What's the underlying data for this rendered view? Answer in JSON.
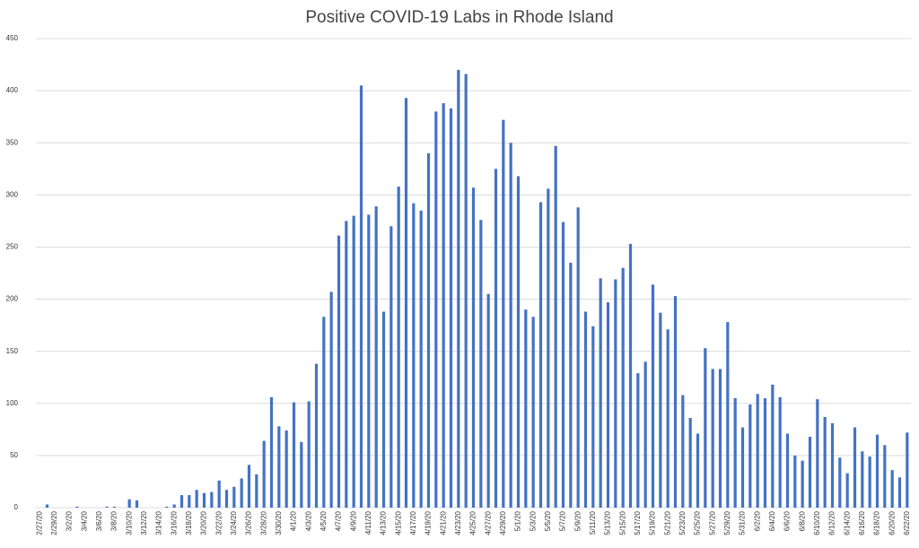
{
  "chart_data": {
    "type": "bar",
    "title": "Positive COVID-19 Labs in Rhode Island",
    "categories": [
      "2/27/20",
      null,
      "2/29/20",
      null,
      "3/2/20",
      null,
      "3/4/20",
      null,
      "3/6/20",
      null,
      "3/8/20",
      null,
      "3/10/20",
      null,
      "3/12/20",
      null,
      "3/14/20",
      null,
      "3/16/20",
      null,
      "3/18/20",
      null,
      "3/20/20",
      null,
      "3/22/20",
      null,
      "3/24/20",
      null,
      "3/26/20",
      null,
      "3/28/20",
      null,
      "3/30/20",
      null,
      "4/1/20",
      null,
      "4/3/20",
      null,
      "4/5/20",
      null,
      "4/7/20",
      null,
      "4/9/20",
      null,
      "4/11/20",
      null,
      "4/13/20",
      null,
      "4/15/20",
      null,
      "4/17/20",
      null,
      "4/19/20",
      null,
      "4/21/20",
      null,
      "4/23/20",
      null,
      "4/25/20",
      null,
      "4/27/20",
      null,
      "4/29/20",
      null,
      "5/1/20",
      null,
      "5/3/20",
      null,
      "5/5/20",
      null,
      "5/7/20",
      null,
      "5/9/20",
      null,
      "5/11/20",
      null,
      "5/13/20",
      null,
      "5/15/20",
      null,
      "5/17/20",
      null,
      "5/19/20",
      null,
      "5/21/20",
      null,
      "5/23/20",
      null,
      "5/25/20",
      null,
      "5/27/20",
      null,
      "5/29/20",
      null,
      "5/31/20",
      null,
      "6/2/20",
      null,
      "6/4/20",
      null,
      "6/6/20",
      null,
      "6/8/20",
      null,
      "6/10/20",
      null,
      "6/12/20",
      null,
      "6/14/20",
      null,
      "6/16/20",
      null,
      "6/18/20",
      null,
      "6/20/20",
      null,
      "6/22/20"
    ],
    "values": [
      0,
      3,
      0,
      0,
      0,
      1,
      0,
      0,
      0,
      1,
      1,
      0,
      8,
      7,
      0,
      0,
      0,
      1,
      3,
      12,
      12,
      17,
      14,
      15,
      26,
      17,
      20,
      28,
      41,
      32,
      64,
      106,
      78,
      74,
      101,
      63,
      102,
      138,
      183,
      207,
      261,
      275,
      280,
      405,
      281,
      289,
      188,
      270,
      308,
      393,
      292,
      285,
      340,
      380,
      388,
      383,
      420,
      416,
      307,
      276,
      205,
      325,
      372,
      350,
      318,
      190,
      183,
      293,
      306,
      347,
      274,
      235,
      288,
      188,
      174,
      220,
      197,
      219,
      230,
      253,
      129,
      140,
      214,
      187,
      171,
      203,
      108,
      86,
      71,
      153,
      133,
      133,
      178,
      105,
      77,
      99,
      109,
      105,
      118,
      106,
      71,
      50,
      45,
      68,
      104,
      87,
      81,
      48,
      33,
      77,
      54,
      49,
      70,
      60,
      36,
      29,
      72
    ],
    "color": "#4472c4",
    "ylim": [
      0,
      450
    ],
    "yticks": [
      0,
      50,
      100,
      150,
      200,
      250,
      300,
      350,
      400,
      450
    ],
    "grid": true
  }
}
